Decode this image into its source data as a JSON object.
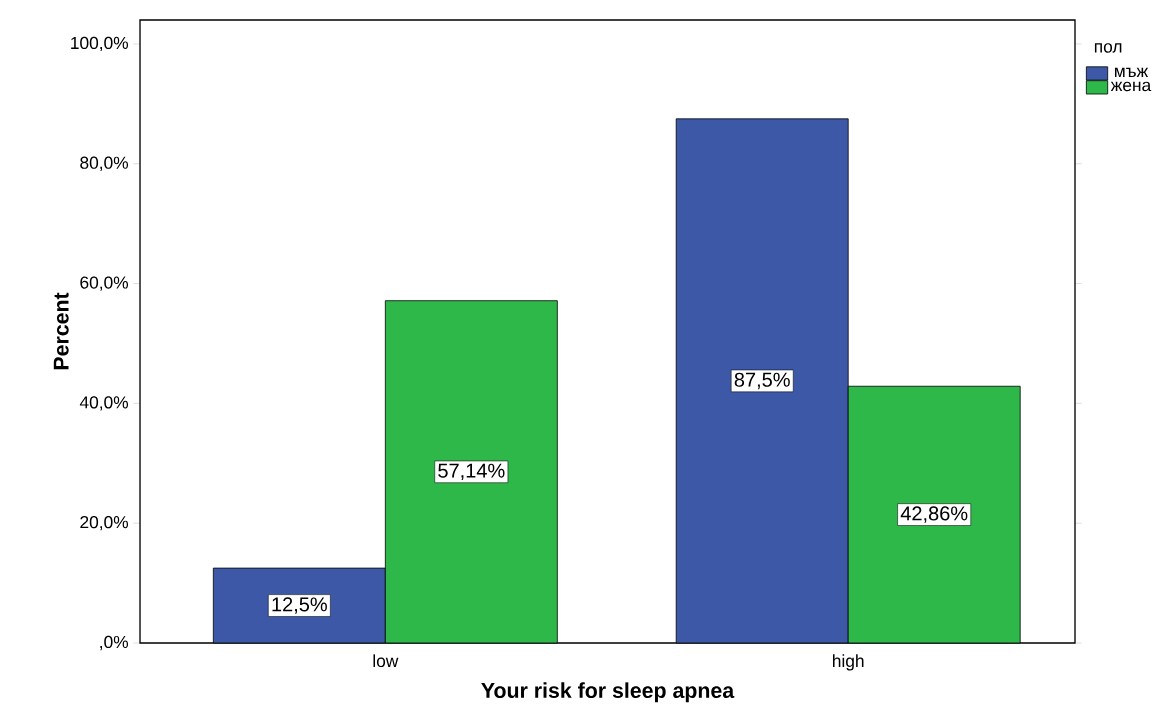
{
  "chart_data": {
    "type": "bar",
    "xlabel": "Your risk for sleep apnea",
    "ylabel": "Percent",
    "legend_title": "пол",
    "categories": [
      "low",
      "high"
    ],
    "series": [
      {
        "name": "мъж",
        "color": "#3e58a8",
        "values": [
          12.5,
          87.5
        ],
        "value_labels": [
          "12,5%",
          "87,5%"
        ]
      },
      {
        "name": "жена",
        "color": "#2fb84a",
        "values": [
          57.14,
          42.86
        ],
        "value_labels": [
          "57,14%",
          "42,86%"
        ]
      }
    ],
    "ylim": [
      0,
      104
    ],
    "yticks": [
      {
        "value": 0,
        "label": ",0%"
      },
      {
        "value": 20,
        "label": "20,0%"
      },
      {
        "value": 40,
        "label": "40,0%"
      },
      {
        "value": 60,
        "label": "60,0%"
      },
      {
        "value": 80,
        "label": "80,0%"
      },
      {
        "value": 100,
        "label": "100,0%"
      }
    ],
    "legend": "top right"
  }
}
